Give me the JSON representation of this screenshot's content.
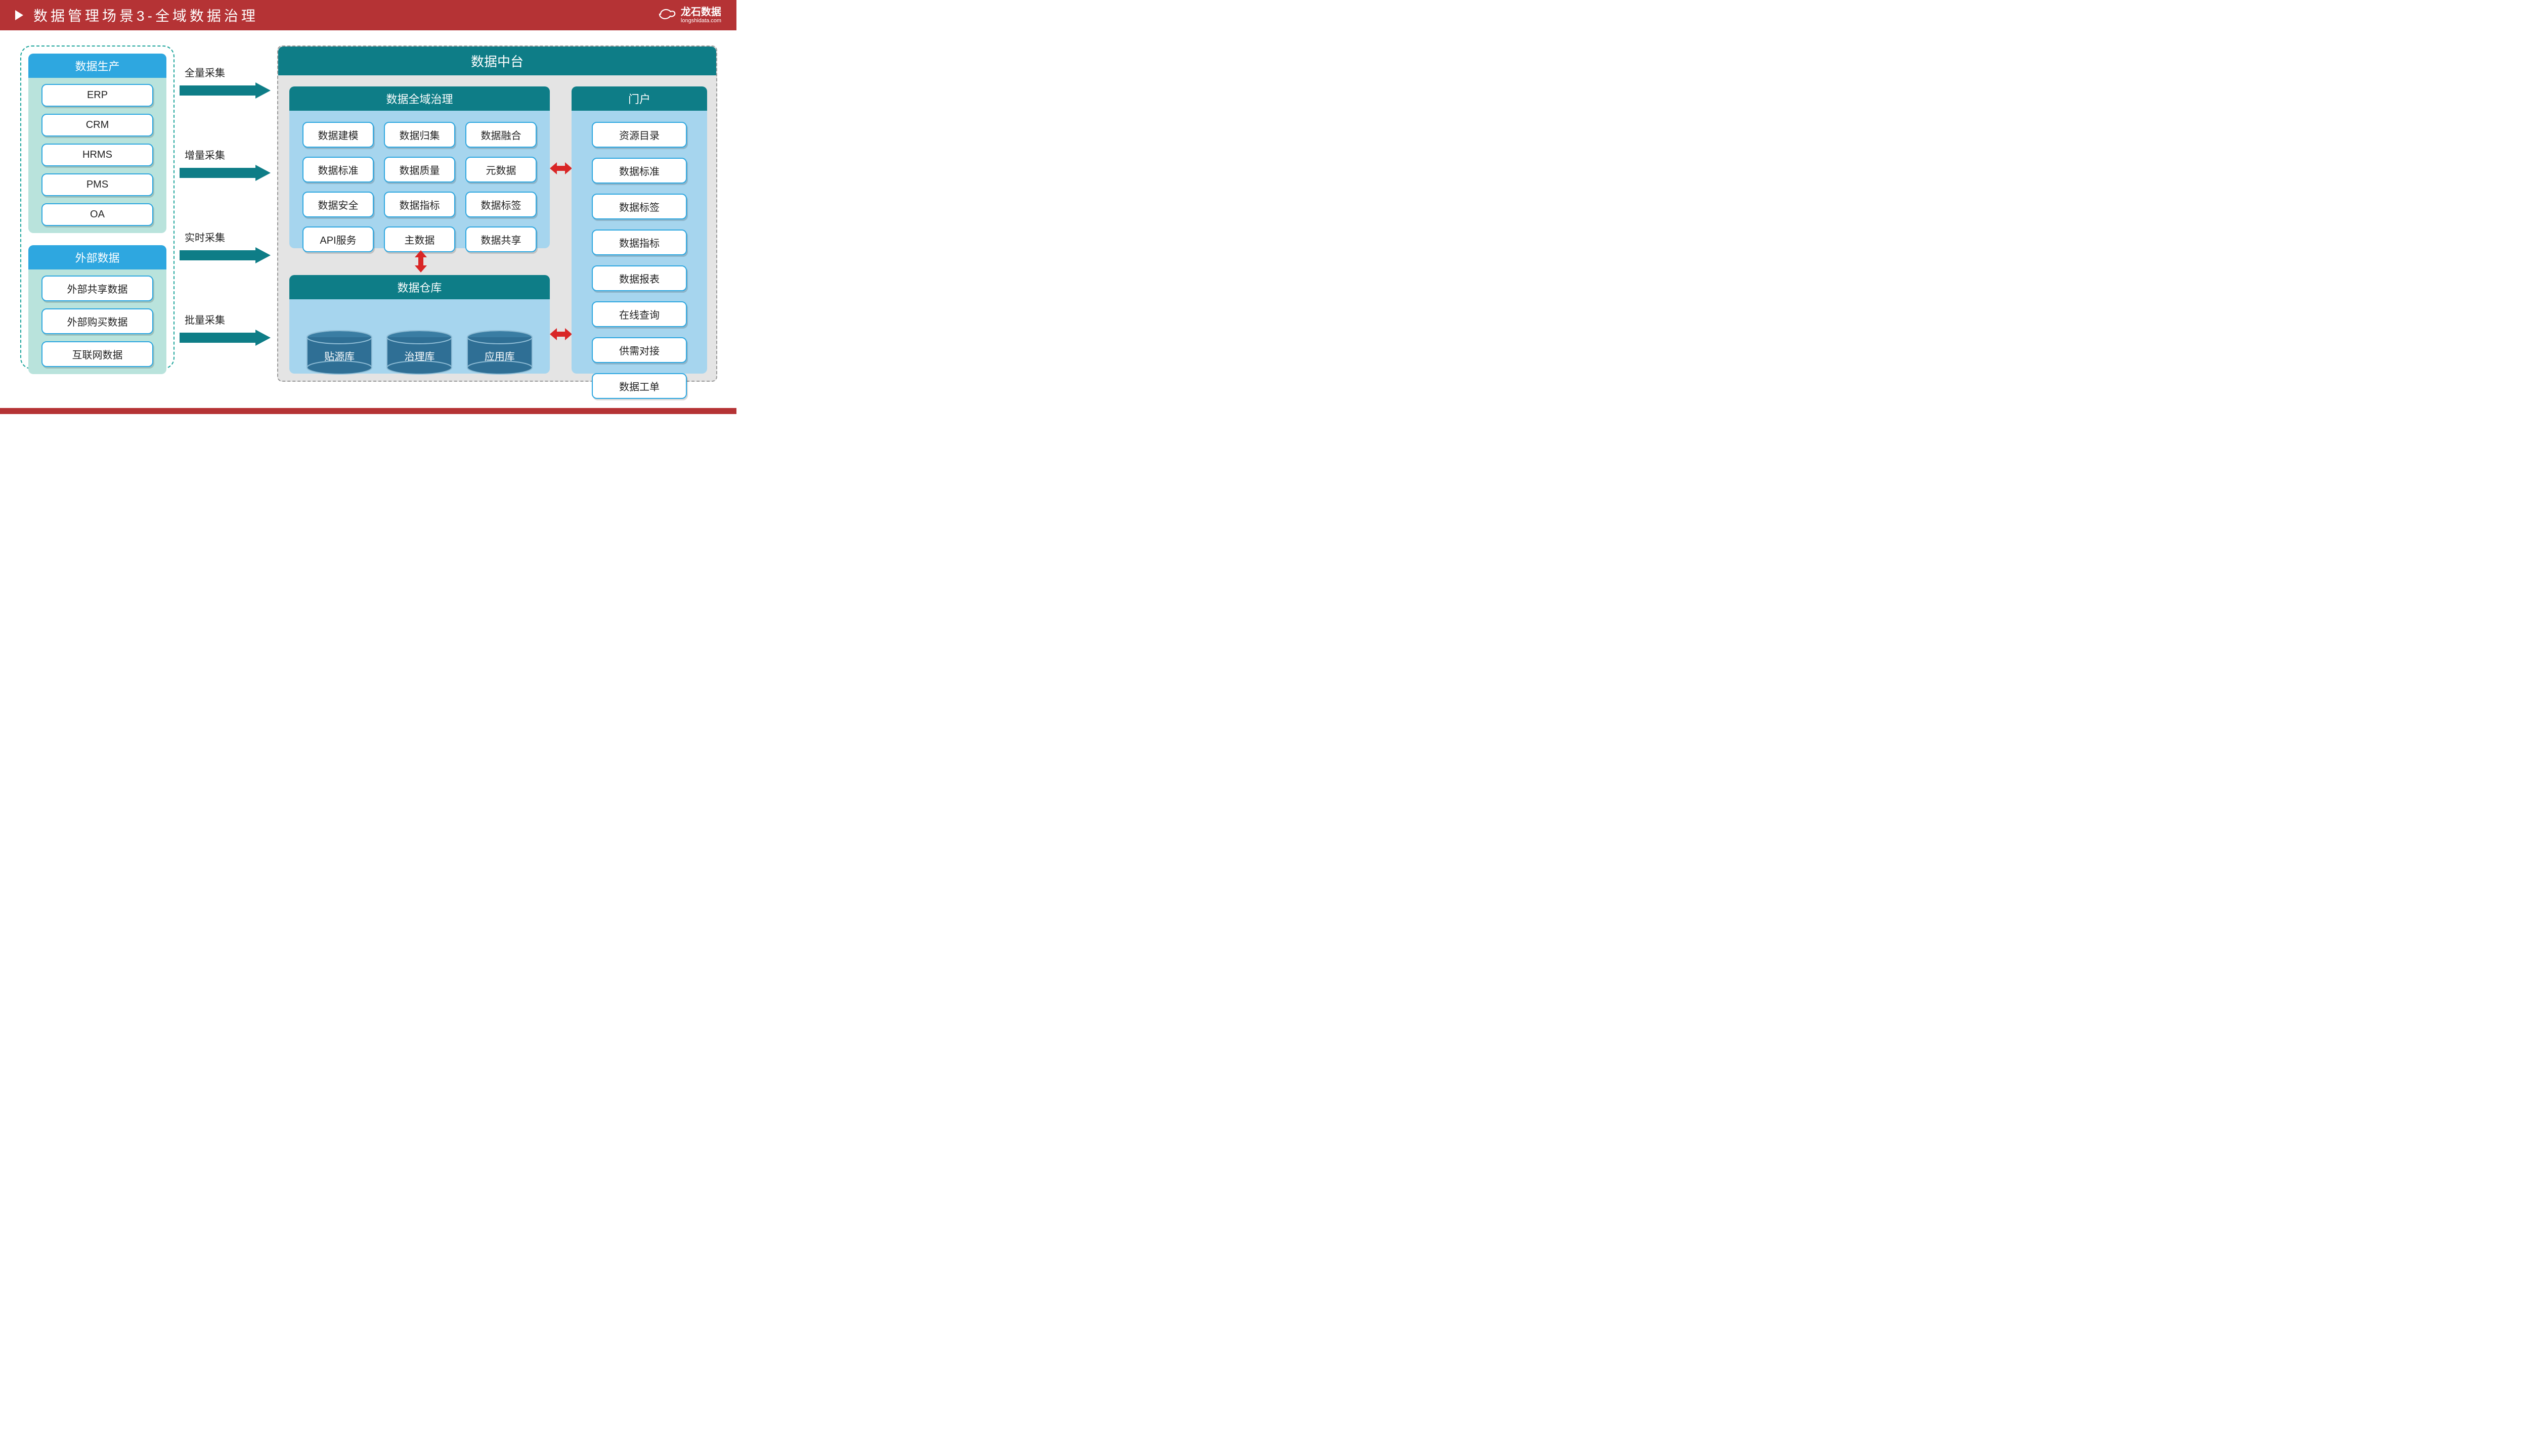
{
  "colors": {
    "header_bg": "#b53335",
    "teal": "#0e7d87",
    "teal_light": "#b9e3dc",
    "sky": "#2ea7e0",
    "sky_light": "#a6d5ee",
    "dash_border": "#1aa39a",
    "grey_bg": "#e4e4e4",
    "red_arrow": "#d92626",
    "cyl_fill": "#2f6f95"
  },
  "header": {
    "title": "数据管理场景3-全域数据治理"
  },
  "logo": {
    "brand": "龙石数据",
    "sub": "longshidata.com"
  },
  "left": {
    "production": {
      "title": "数据生产",
      "items": [
        "ERP",
        "CRM",
        "HRMS",
        "PMS",
        "OA"
      ]
    },
    "external": {
      "title": "外部数据",
      "items": [
        "外部共享数据",
        "外部购买数据",
        "互联网数据"
      ]
    }
  },
  "arrows": [
    "全量采集",
    "增量采集",
    "实时采集",
    "批量采集"
  ],
  "platform": {
    "title": "数据中台",
    "governance": {
      "title": "数据全域治理",
      "items": [
        "数据建模",
        "数据归集",
        "数据融合",
        "数据标准",
        "数据质量",
        "元数据",
        "数据安全",
        "数据指标",
        "数据标签",
        "API服务",
        "主数据",
        "数据共享"
      ]
    },
    "warehouse": {
      "title": "数据仓库",
      "dbs": [
        "贴源库",
        "治理库",
        "应用库"
      ]
    },
    "portal": {
      "title": "门户",
      "items": [
        "资源目录",
        "数据标准",
        "数据标签",
        "数据指标",
        "数据报表",
        "在线查询",
        "供需对接",
        "数据工单"
      ]
    }
  }
}
